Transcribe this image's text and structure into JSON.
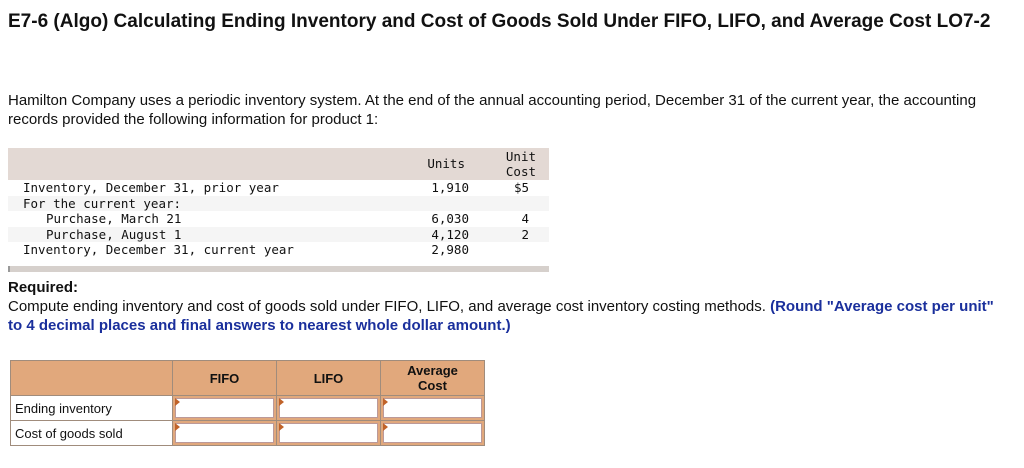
{
  "title": "E7-6 (Algo) Calculating Ending Inventory and Cost of Goods Sold Under FIFO, LIFO, and Average Cost LO7-2",
  "intro": "Hamilton Company uses a periodic inventory system. At the end of the annual accounting period, December 31 of the current year, the accounting records provided the following information for product 1:",
  "data_table": {
    "headers": {
      "units": "Units",
      "unit_cost_1": "Unit",
      "unit_cost_2": "Cost"
    },
    "rows": [
      {
        "label": "Inventory, December 31, prior year",
        "units": "1,910",
        "cost": "$5"
      },
      {
        "label": "For the current year:",
        "units": "",
        "cost": ""
      },
      {
        "label": "Purchase, March 21",
        "units": "6,030",
        "cost": "4"
      },
      {
        "label": "Purchase, August 1",
        "units": "4,120",
        "cost": "2"
      },
      {
        "label": "Inventory, December 31, current year",
        "units": "2,980",
        "cost": ""
      }
    ]
  },
  "required": {
    "heading": "Required:",
    "text": "Compute ending inventory and cost of goods sold under FIFO, LIFO, and average cost inventory costing methods. ",
    "note": "(Round \"Average cost per unit\" to 4 decimal places and final answers to nearest whole dollar amount.)"
  },
  "answer_table": {
    "headers": {
      "fifo": "FIFO",
      "lifo": "LIFO",
      "avg_1": "Average",
      "avg_2": "Cost"
    },
    "rows": [
      {
        "label": "Ending inventory",
        "fifo": "",
        "lifo": "",
        "avg": ""
      },
      {
        "label": "Cost of goods sold",
        "fifo": "",
        "lifo": "",
        "avg": ""
      }
    ]
  },
  "colors": {
    "answer_header": "#e1a87c",
    "data_header": "#e3d9d4",
    "note_blue": "#1a2f9c"
  }
}
